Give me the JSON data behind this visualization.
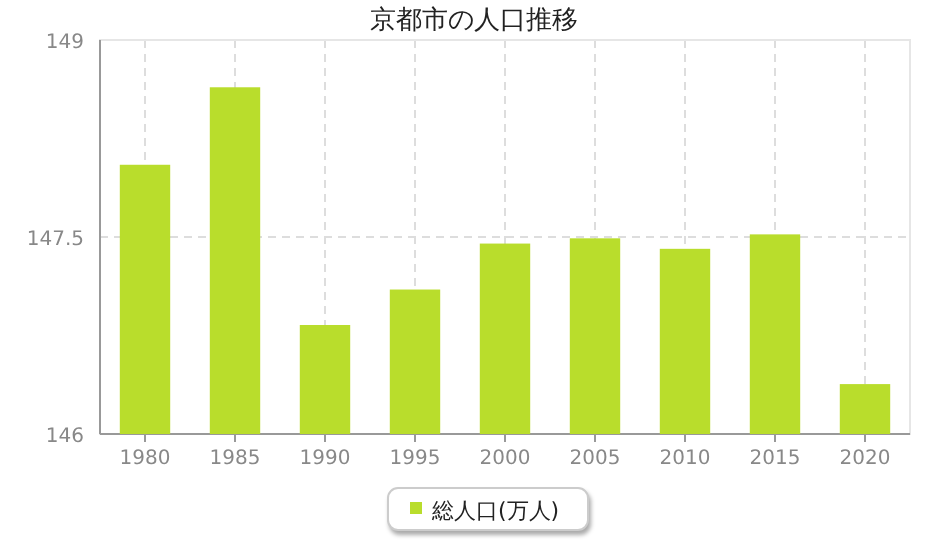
{
  "chart_data": {
    "type": "bar",
    "title": "京都市の人口推移",
    "categories": [
      "1980",
      "1985",
      "1990",
      "1995",
      "2000",
      "2005",
      "2010",
      "2015",
      "2020"
    ],
    "series": [
      {
        "name": "総人口(万人)",
        "color": "#b9dd2c",
        "values": [
          148.05,
          148.64,
          146.83,
          147.1,
          147.45,
          147.49,
          147.41,
          147.52,
          146.38
        ]
      }
    ],
    "ylim": [
      146,
      149
    ],
    "yticks": [
      146,
      {
        "value": 147.5,
        "label": "147.5"
      },
      149
    ],
    "grid": true,
    "legend": "bottom"
  }
}
